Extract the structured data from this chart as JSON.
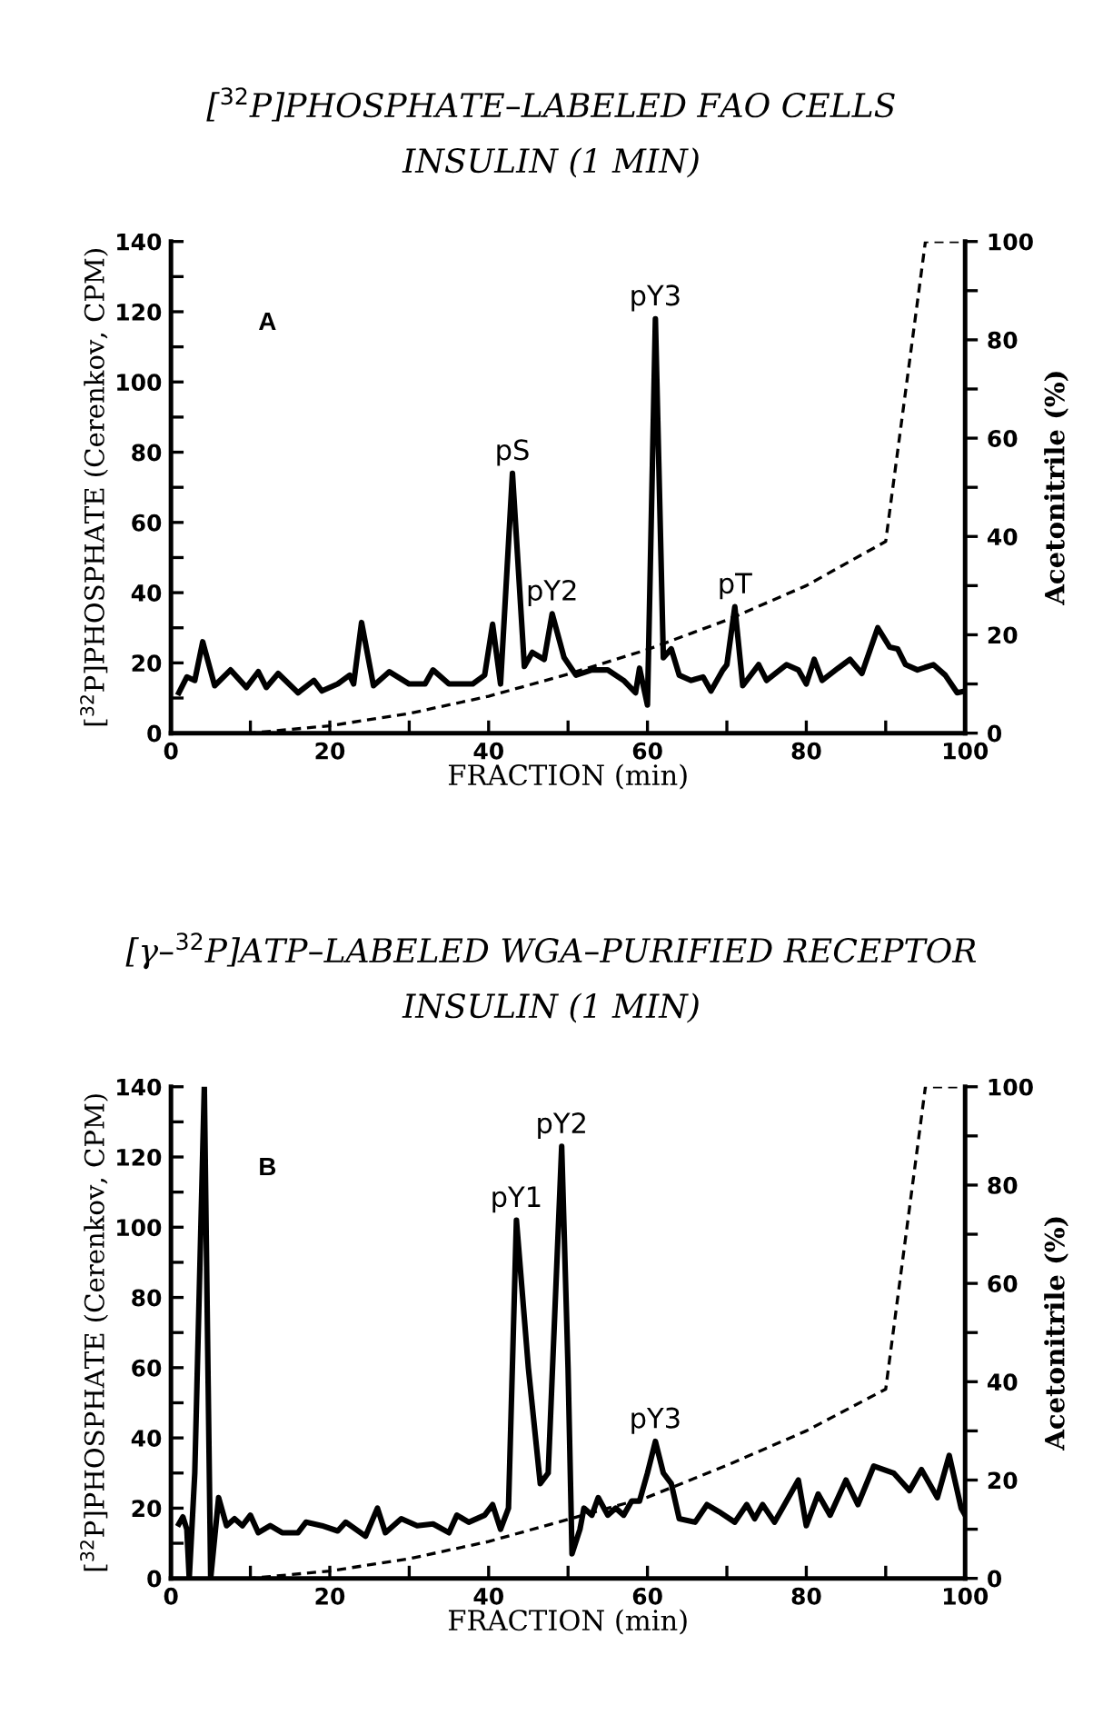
{
  "chart_data": [
    {
      "type": "line",
      "title": "[$^{32}$P]PHOSPHATE–LABELED FAO CELLS",
      "subtitle": "INSULIN (1 MIN)",
      "xlabel": "FRACTION (min)",
      "ylabel": "[$^{32}$P]PHOSPHATE (Cerenkov, CPM)",
      "y2label": "Acetonitrile (%)",
      "xlim": [
        0,
        100
      ],
      "ylim": [
        0,
        140
      ],
      "y2lim": [
        0,
        100
      ],
      "xticks": [
        0,
        {
          "value": 10,
          "label": null
        },
        20,
        {
          "value": 30,
          "label": null
        },
        40,
        {
          "value": 50,
          "label": null
        },
        60,
        {
          "value": 70,
          "label": null
        },
        80,
        {
          "value": 90,
          "label": null
        },
        100
      ],
      "yticks": [
        0,
        {
          "value": 10,
          "label": null
        },
        20,
        {
          "value": 30,
          "label": null
        },
        40,
        {
          "value": 50,
          "label": null
        },
        60,
        {
          "value": 70,
          "label": null
        },
        80,
        {
          "value": 90,
          "label": null
        },
        100,
        {
          "value": 110,
          "label": null
        },
        120,
        {
          "value": 130,
          "label": null
        },
        140
      ],
      "y2ticks": [
        0,
        {
          "value": 10,
          "label": null
        },
        20,
        {
          "value": 30,
          "label": null
        },
        40,
        {
          "value": 50,
          "label": null
        },
        60,
        {
          "value": 70,
          "label": null
        },
        80,
        {
          "value": 90,
          "label": null
        },
        100
      ],
      "grid": false,
      "legend": false,
      "annotations": [
        "A",
        {
          "text": "pS",
          "x": 43,
          "y": 74
        },
        {
          "text": "pY2",
          "x": 48,
          "y": 34
        },
        {
          "text": "pY3",
          "x": 61,
          "y": 118
        },
        {
          "text": "pT",
          "x": 71,
          "y": 36
        }
      ],
      "series": [
        {
          "color": "#000000",
          "line_style": "solid",
          "x": [
            1,
            2,
            3,
            4,
            5.5,
            7.5,
            9.5,
            11,
            12,
            13.5,
            16,
            18,
            19,
            21,
            22.5,
            23,
            24,
            25.5,
            27.5,
            30,
            32,
            33,
            35,
            38,
            39.5,
            40.5,
            41.5,
            43,
            44.5,
            45.5,
            47,
            48,
            49.5,
            51,
            53,
            55,
            57,
            58.5,
            59,
            60,
            61,
            62,
            63,
            64,
            65.5,
            67,
            68,
            69.5,
            70,
            71,
            72,
            74,
            75,
            77.5,
            79,
            80,
            81,
            82,
            84,
            85.5,
            87,
            89,
            90.5,
            91.5,
            92.5,
            94,
            96,
            97.5,
            99,
            100
          ],
          "values": [
            11.5,
            16,
            15,
            26,
            13.5,
            18,
            13,
            17.5,
            13,
            17,
            11.5,
            15,
            12,
            14,
            16.5,
            14,
            31.5,
            13.5,
            17.5,
            14,
            14,
            18,
            14,
            14,
            16.5,
            31,
            14,
            74,
            19,
            23,
            21,
            34,
            21.5,
            16.5,
            18,
            18,
            15,
            11.5,
            18.5,
            8,
            118,
            21.5,
            24,
            16.5,
            15,
            16,
            12,
            18,
            19.5,
            36,
            13.5,
            19.5,
            15,
            19.5,
            18,
            14,
            21,
            15,
            18.5,
            21,
            17,
            30,
            24.5,
            24,
            19.5,
            18,
            19.5,
            16.5,
            11.5,
            12
          ]
        },
        {
          "color": "#000000",
          "line_style": "dashed",
          "axis": "y2",
          "x": [
            0,
            10,
            20,
            30,
            40,
            50,
            60,
            70,
            80,
            90,
            95,
            100
          ],
          "values": [
            0,
            0,
            1.5,
            4,
            7.5,
            12,
            17,
            23,
            30,
            39,
            100,
            100
          ]
        }
      ]
    },
    {
      "type": "line",
      "title": "[γ–$^{32}$P]ATP–LABELED WGA–PURIFIED RECEPTOR",
      "subtitle": "INSULIN (1 MIN)",
      "xlabel": "FRACTION (min)",
      "ylabel": "[$^{32}$P]PHOSPHATE (Cerenkov, CPM)",
      "y2label": "Acetonitrile (%)",
      "xlim": [
        0,
        100
      ],
      "ylim": [
        0,
        140
      ],
      "y2lim": [
        0,
        100
      ],
      "xticks": [
        0,
        {
          "value": 10,
          "label": null
        },
        20,
        {
          "value": 30,
          "label": null
        },
        40,
        {
          "value": 50,
          "label": null
        },
        60,
        {
          "value": 70,
          "label": null
        },
        80,
        {
          "value": 90,
          "label": null
        },
        100
      ],
      "yticks": [
        0,
        {
          "value": 10,
          "label": null
        },
        20,
        {
          "value": 30,
          "label": null
        },
        40,
        {
          "value": 50,
          "label": null
        },
        60,
        {
          "value": 70,
          "label": null
        },
        80,
        {
          "value": 90,
          "label": null
        },
        100,
        {
          "value": 110,
          "label": null
        },
        120,
        {
          "value": 130,
          "label": null
        },
        140
      ],
      "y2ticks": [
        0,
        {
          "value": 10,
          "label": null
        },
        20,
        {
          "value": 30,
          "label": null
        },
        40,
        {
          "value": 50,
          "label": null
        },
        60,
        {
          "value": 70,
          "label": null
        },
        80,
        {
          "value": 90,
          "label": null
        },
        100
      ],
      "grid": false,
      "legend": false,
      "annotations": [
        "B",
        {
          "text": "pY1",
          "x": 43.5,
          "y": 102
        },
        {
          "text": "pY2",
          "x": 49.2,
          "y": 123
        },
        {
          "text": "pY3",
          "x": 61,
          "y": 39
        }
      ],
      "series": [
        {
          "color": "#000000",
          "line_style": "solid",
          "x": [
            1,
            1.5,
            2,
            2.3,
            3,
            4.2,
            5,
            6,
            7,
            8,
            9,
            10,
            11,
            12.5,
            14,
            16,
            17,
            19,
            21,
            22,
            24.5,
            26,
            27,
            29,
            31,
            33,
            35,
            36,
            37.5,
            39.5,
            40.5,
            41.5,
            42.5,
            43.5,
            45,
            46.5,
            47.5,
            49.2,
            50,
            50.5,
            51.5,
            52,
            53,
            53.8,
            55,
            56,
            57,
            58,
            59,
            60,
            61,
            62,
            63,
            64,
            66,
            67.5,
            69,
            71,
            72.5,
            73.5,
            74.5,
            76,
            77,
            79,
            80,
            81.5,
            83,
            85,
            86.5,
            88.5,
            91,
            93,
            94.5,
            96.5,
            98,
            99.5,
            100
          ],
          "values": [
            15.5,
            17.5,
            14,
            0,
            30,
            140,
            0,
            23,
            15,
            17,
            15,
            18,
            13,
            15,
            13,
            13,
            16,
            15,
            13.5,
            16,
            12,
            20,
            13,
            17,
            15,
            15.5,
            13,
            18,
            16,
            18,
            21,
            14,
            20,
            102,
            60,
            27,
            30,
            123,
            60,
            7,
            14,
            20,
            18,
            23,
            18,
            20,
            18,
            22,
            22,
            30,
            39,
            30,
            27,
            17,
            16,
            21,
            19,
            16,
            21,
            17,
            21,
            16,
            20,
            28,
            15,
            24,
            18,
            28,
            21,
            32,
            30,
            25,
            31,
            23,
            35,
            20,
            18
          ]
        },
        {
          "color": "#000000",
          "line_style": "dashed",
          "axis": "y2",
          "x": [
            0,
            10,
            20,
            30,
            40,
            50,
            60,
            70,
            80,
            90,
            95,
            100
          ],
          "values": [
            0,
            0,
            1.5,
            4,
            7.5,
            12,
            16.5,
            23,
            30,
            38.5,
            100,
            100
          ]
        }
      ]
    }
  ]
}
